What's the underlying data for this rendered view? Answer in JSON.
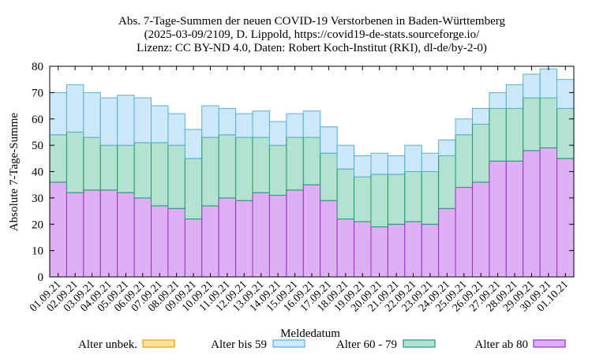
{
  "chart_data": {
    "type": "bar",
    "stacked": true,
    "title_lines": [
      "Abs. 7-Tage-Summen der neuen COVID-19 Verstorbenen in Baden-Württemberg",
      "(2025-03-09/2109, D. Lippold, https://covid19-de-stats.sourceforge.io/",
      "Lizenz: CC BY-ND 4.0, Daten: Robert Koch-Institut (RKI), dl-de/by-2-0)"
    ],
    "xlabel": "Meldedatum",
    "ylabel": "Absolute 7-Tage-Summe",
    "ylim": [
      0,
      80
    ],
    "yticks": [
      0,
      10,
      20,
      30,
      40,
      50,
      60,
      70,
      80
    ],
    "grid": false,
    "legend_position": "bottom",
    "categories": [
      "01.09.21",
      "02.09.21",
      "03.09.21",
      "04.09.21",
      "05.09.21",
      "06.09.21",
      "07.09.21",
      "08.09.21",
      "09.09.21",
      "10.09.21",
      "11.09.21",
      "12.09.21",
      "13.09.21",
      "14.09.21",
      "15.09.21",
      "16.09.21",
      "17.09.21",
      "18.09.21",
      "19.09.21",
      "20.09.21",
      "21.09.21",
      "22.09.21",
      "23.09.21",
      "24.09.21",
      "25.09.21",
      "26.09.21",
      "27.09.21",
      "28.09.21",
      "29.09.21",
      "30.09.21",
      "01.10.21"
    ],
    "series": [
      {
        "name": "Alter unbek.",
        "fill": "#fde49c",
        "stroke": "#e3a21a",
        "values": [
          0,
          0,
          0,
          0,
          0,
          0,
          0,
          0,
          0,
          0,
          0,
          0,
          0,
          0,
          0,
          0,
          0,
          0,
          0,
          0,
          0,
          0,
          0,
          0,
          0,
          0,
          0,
          0,
          0,
          0,
          0
        ]
      },
      {
        "name": "Alter ab 80",
        "fill": "#dcb0f2",
        "stroke": "#9b30c6",
        "values": [
          36,
          32,
          33,
          33,
          32,
          30,
          27,
          26,
          22,
          27,
          30,
          29,
          32,
          31,
          33,
          35,
          29,
          22,
          21,
          19,
          20,
          21,
          20,
          26,
          34,
          36,
          44,
          44,
          48,
          49,
          45
        ]
      },
      {
        "name": "Alter 60 - 79",
        "fill": "#b3e3d0",
        "stroke": "#1f9a6e",
        "values": [
          18,
          23,
          20,
          17,
          18,
          21,
          24,
          24,
          23,
          26,
          24,
          24,
          21,
          19,
          20,
          18,
          18,
          19,
          17,
          20,
          19,
          19,
          20,
          20,
          20,
          22,
          20,
          20,
          20,
          19,
          19
        ]
      },
      {
        "name": "Alter bis 59",
        "fill": "#cde8f8",
        "stroke": "#5aaed8",
        "values": [
          16,
          18,
          17,
          18,
          19,
          17,
          14,
          12,
          11,
          12,
          10,
          9,
          10,
          9,
          9,
          10,
          10,
          9,
          8,
          8,
          7,
          10,
          7,
          6,
          6,
          6,
          6,
          9,
          9,
          11,
          11
        ]
      }
    ],
    "legend_order": [
      "Alter unbek.",
      "Alter bis 59",
      "Alter 60 - 79",
      "Alter ab 80"
    ]
  }
}
